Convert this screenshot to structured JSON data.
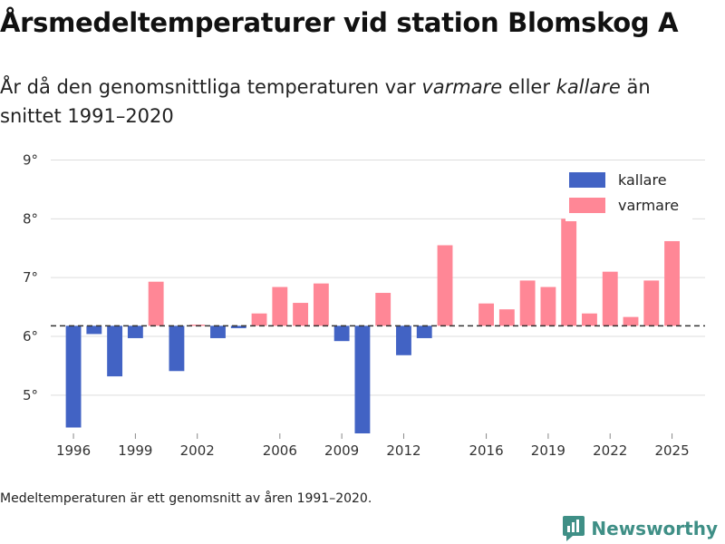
{
  "title": "Årsmedeltemperaturer vid station Blomskog A",
  "subtitle": {
    "part1": "År då den genomsnittliga temperaturen var ",
    "warmer": "varmare",
    "part2": " eller ",
    "colder": "kallare",
    "part3": " än snittet 1991–2020"
  },
  "note": "Medeltemperaturen är ett genomsnitt av åren 1991–2020.",
  "brand": "Newsworthy",
  "colors": {
    "colder": "#4263c4",
    "warmer": "#ff8796",
    "grid": "#dddddd",
    "baseline": "#333333",
    "brand": "#3f8f86"
  },
  "chart_data": {
    "type": "bar",
    "baseline": 6.18,
    "ylim": [
      4.35,
      9.1
    ],
    "xlim": [
      1994.9,
      2026.6
    ],
    "yticks": [
      5,
      6,
      7,
      8,
      9
    ],
    "ytick_labels": [
      "5°",
      "6°",
      "7°",
      "8°",
      "9°"
    ],
    "xticks": [
      1996,
      1999,
      2002,
      2006,
      2009,
      2012,
      2016,
      2019,
      2022,
      2025
    ],
    "xtick_labels": [
      "1996",
      "1999",
      "2002",
      "2006",
      "2009",
      "2012",
      "2016",
      "2019",
      "2022",
      "2025"
    ],
    "legend": [
      {
        "key": "colder",
        "label": "kallare"
      },
      {
        "key": "warmer",
        "label": "varmare"
      }
    ],
    "legend_position": "top-right",
    "years": [
      1996,
      1997,
      1998,
      1999,
      2000,
      2001,
      2002,
      2003,
      2004,
      2005,
      2006,
      2007,
      2008,
      2009,
      2010,
      2011,
      2012,
      2013,
      2014,
      2015,
      2016,
      2017,
      2018,
      2019,
      2020,
      2021,
      2022,
      2023,
      2024,
      2025
    ],
    "values": [
      4.45,
      6.04,
      5.32,
      5.97,
      6.93,
      5.41,
      6.2,
      5.97,
      6.14,
      6.39,
      6.84,
      6.57,
      6.9,
      5.92,
      4.35,
      6.74,
      5.68,
      5.97,
      7.55,
      null,
      6.56,
      6.46,
      6.95,
      6.84,
      8.0,
      6.39,
      7.1,
      6.33,
      6.95,
      7.62
    ]
  }
}
